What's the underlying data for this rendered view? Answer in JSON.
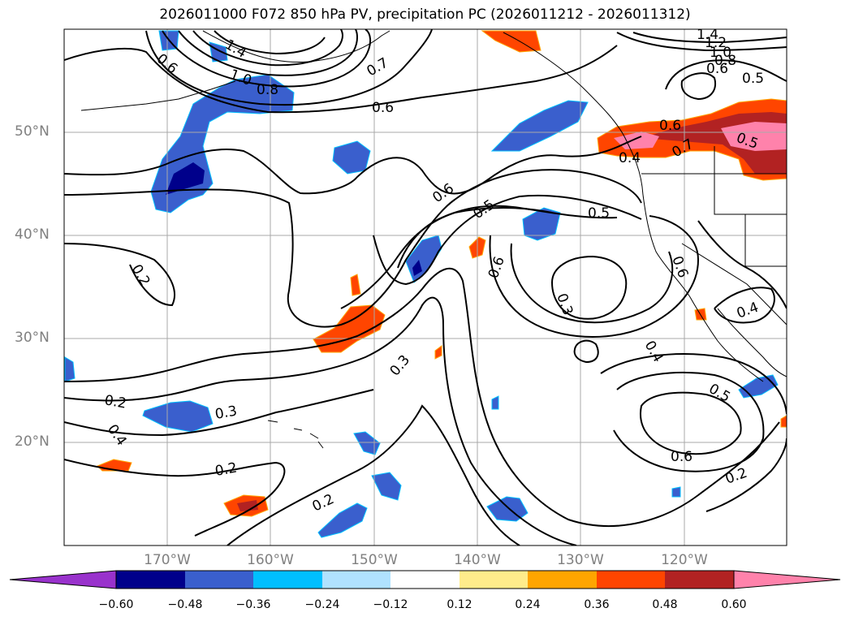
{
  "title": "2026011000 F072 850 hPa PV, precipitation PC (2026011212 - 2026011312)",
  "lat_labels": [
    "50°N",
    "40°N",
    "30°N",
    "20°N"
  ],
  "lon_labels": [
    "170°W",
    "160°W",
    "150°W",
    "140°W",
    "130°W",
    "120°W"
  ],
  "colorbar": {
    "ticks": [
      "−0.60",
      "−0.48",
      "−0.36",
      "−0.24",
      "−0.12",
      "0.12",
      "0.24",
      "0.36",
      "0.48",
      "0.60"
    ],
    "colors": [
      "#9932cc",
      "#00008b",
      "#3a5fcd",
      "#00bfff",
      "#b0e2ff",
      "#ffffff",
      "#ffec8b",
      "#ffa500",
      "#ff4500",
      "#b22222",
      "#ff82ab"
    ]
  },
  "contour_labels": [
    "1.4",
    "1.2",
    "1.0",
    "0.8",
    "0.6",
    "0.5",
    "0.4",
    "0.7",
    "0.6",
    "0.8",
    "1.0",
    "0.6",
    "0.6",
    "0.5",
    "0.5",
    "0.6",
    "0.7",
    "0.4",
    "0.2",
    "0.6",
    "0.5",
    "0.3",
    "0.3",
    "0.4",
    "0.5",
    "0.6",
    "0.2",
    "0.2",
    "0.4",
    "0.3",
    "0.2",
    "0.2",
    "0.6",
    "0.4",
    "0.4"
  ],
  "contour_labels_positions_note": "",
  "fill_colors": {
    "blue_light": "#3a5fcd",
    "blue_dark": "#00008b",
    "cyan": "#00bfff",
    "orange": "#ff4500",
    "red": "#b22222",
    "pink": "#ff82ab",
    "yellow": "#ffa500"
  }
}
